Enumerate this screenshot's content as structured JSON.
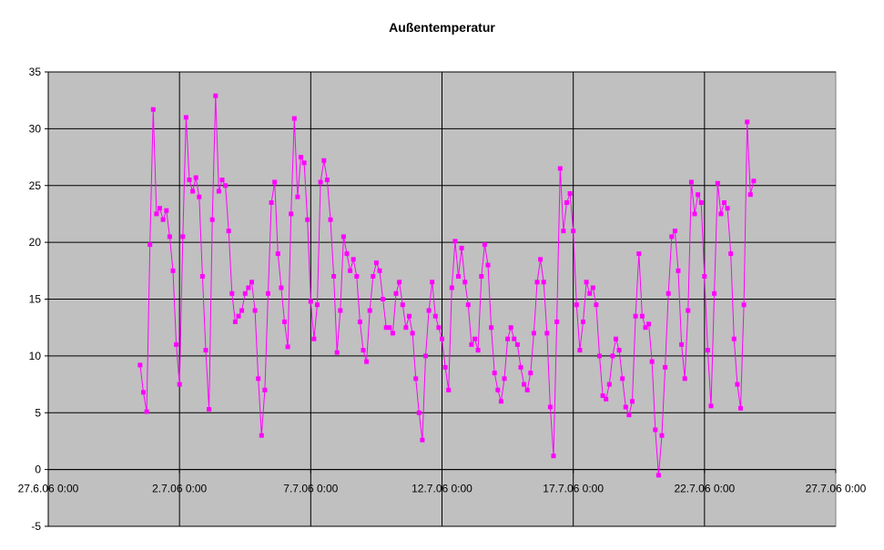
{
  "chart_data": {
    "type": "line",
    "title": "Außentemperatur",
    "xlabel": "",
    "ylabel": "",
    "ylim": [
      -5,
      35
    ],
    "yticks": [
      -5,
      0,
      5,
      10,
      15,
      20,
      25,
      30,
      35
    ],
    "xlim": [
      "2006-06-27 00:00",
      "2006-07-27 00:00"
    ],
    "xtick_labels": [
      "27.6.06 0:00",
      "2.7.06 0:00",
      "7.7.06 0:00",
      "12.7.06 0:00",
      "17.7.06 0:00",
      "22.7.06 0:00",
      "27.7.06 0:00"
    ],
    "grid": true,
    "plot_background": "#c0c0c0",
    "series": [
      {
        "color": "#ff00ff",
        "marker": "square",
        "points": [
          [
            "2006-06-30 12:00",
            9.2
          ],
          [
            "2006-06-30 15:00",
            6.8
          ],
          [
            "2006-06-30 18:00",
            5.1
          ],
          [
            "2006-06-30 21:00",
            19.8
          ],
          [
            "2006-07-01 00:00",
            31.7
          ],
          [
            "2006-07-01 03:00",
            22.5
          ],
          [
            "2006-07-01 06:00",
            23.0
          ],
          [
            "2006-07-01 09:00",
            22.0
          ],
          [
            "2006-07-01 12:00",
            22.8
          ],
          [
            "2006-07-01 15:00",
            20.5
          ],
          [
            "2006-07-01 18:00",
            17.5
          ],
          [
            "2006-07-01 21:00",
            11.0
          ],
          [
            "2006-07-02 00:00",
            7.5
          ],
          [
            "2006-07-02 03:00",
            20.5
          ],
          [
            "2006-07-02 06:00",
            31.0
          ],
          [
            "2006-07-02 09:00",
            25.5
          ],
          [
            "2006-07-02 12:00",
            24.5
          ],
          [
            "2006-07-02 15:00",
            25.7
          ],
          [
            "2006-07-02 18:00",
            24.0
          ],
          [
            "2006-07-02 21:00",
            17.0
          ],
          [
            "2006-07-03 00:00",
            10.5
          ],
          [
            "2006-07-03 03:00",
            5.3
          ],
          [
            "2006-07-03 06:00",
            22.0
          ],
          [
            "2006-07-03 09:00",
            32.9
          ],
          [
            "2006-07-03 12:00",
            24.5
          ],
          [
            "2006-07-03 15:00",
            25.5
          ],
          [
            "2006-07-03 18:00",
            25.0
          ],
          [
            "2006-07-03 21:00",
            21.0
          ],
          [
            "2006-07-04 00:00",
            15.5
          ],
          [
            "2006-07-04 03:00",
            13.0
          ],
          [
            "2006-07-04 06:00",
            13.5
          ],
          [
            "2006-07-04 09:00",
            14.0
          ],
          [
            "2006-07-04 12:00",
            15.5
          ],
          [
            "2006-07-04 15:00",
            16.0
          ],
          [
            "2006-07-04 18:00",
            16.5
          ],
          [
            "2006-07-04 21:00",
            14.0
          ],
          [
            "2006-07-05 00:00",
            8.0
          ],
          [
            "2006-07-05 03:00",
            3.0
          ],
          [
            "2006-07-05 06:00",
            7.0
          ],
          [
            "2006-07-05 09:00",
            15.5
          ],
          [
            "2006-07-05 12:00",
            23.5
          ],
          [
            "2006-07-05 15:00",
            25.3
          ],
          [
            "2006-07-05 18:00",
            19.0
          ],
          [
            "2006-07-05 21:00",
            16.0
          ],
          [
            "2006-07-06 00:00",
            13.0
          ],
          [
            "2006-07-06 03:00",
            10.8
          ],
          [
            "2006-07-06 06:00",
            22.5
          ],
          [
            "2006-07-06 09:00",
            30.9
          ],
          [
            "2006-07-06 12:00",
            24.0
          ],
          [
            "2006-07-06 15:00",
            27.5
          ],
          [
            "2006-07-06 18:00",
            27.0
          ],
          [
            "2006-07-06 21:00",
            22.0
          ],
          [
            "2006-07-07 00:00",
            14.8
          ],
          [
            "2006-07-07 03:00",
            11.5
          ],
          [
            "2006-07-07 06:00",
            14.5
          ],
          [
            "2006-07-07 09:00",
            25.3
          ],
          [
            "2006-07-07 12:00",
            27.2
          ],
          [
            "2006-07-07 15:00",
            25.5
          ],
          [
            "2006-07-07 18:00",
            22.0
          ],
          [
            "2006-07-07 21:00",
            17.0
          ],
          [
            "2006-07-08 00:00",
            10.3
          ],
          [
            "2006-07-08 03:00",
            14.0
          ],
          [
            "2006-07-08 06:00",
            20.5
          ],
          [
            "2006-07-08 09:00",
            19.0
          ],
          [
            "2006-07-08 12:00",
            17.5
          ],
          [
            "2006-07-08 15:00",
            18.5
          ],
          [
            "2006-07-08 18:00",
            17.0
          ],
          [
            "2006-07-08 21:00",
            13.0
          ],
          [
            "2006-07-09 00:00",
            10.5
          ],
          [
            "2006-07-09 03:00",
            9.5
          ],
          [
            "2006-07-09 06:00",
            14.0
          ],
          [
            "2006-07-09 09:00",
            17.0
          ],
          [
            "2006-07-09 12:00",
            18.2
          ],
          [
            "2006-07-09 15:00",
            17.5
          ],
          [
            "2006-07-09 18:00",
            15.0
          ],
          [
            "2006-07-09 21:00",
            12.5
          ],
          [
            "2006-07-10 00:00",
            12.5
          ],
          [
            "2006-07-10 03:00",
            12.0
          ],
          [
            "2006-07-10 06:00",
            15.5
          ],
          [
            "2006-07-10 09:00",
            16.5
          ],
          [
            "2006-07-10 12:00",
            14.5
          ],
          [
            "2006-07-10 15:00",
            12.5
          ],
          [
            "2006-07-10 18:00",
            13.5
          ],
          [
            "2006-07-10 21:00",
            12.0
          ],
          [
            "2006-07-11 00:00",
            8.0
          ],
          [
            "2006-07-11 03:00",
            5.0
          ],
          [
            "2006-07-11 06:00",
            2.6
          ],
          [
            "2006-07-11 09:00",
            10.0
          ],
          [
            "2006-07-11 12:00",
            14.0
          ],
          [
            "2006-07-11 15:00",
            16.5
          ],
          [
            "2006-07-11 18:00",
            13.5
          ],
          [
            "2006-07-11 21:00",
            12.5
          ],
          [
            "2006-07-12 00:00",
            11.5
          ],
          [
            "2006-07-12 03:00",
            9.0
          ],
          [
            "2006-07-12 06:00",
            7.0
          ],
          [
            "2006-07-12 09:00",
            16.0
          ],
          [
            "2006-07-12 12:00",
            20.1
          ],
          [
            "2006-07-12 15:00",
            17.0
          ],
          [
            "2006-07-12 18:00",
            19.5
          ],
          [
            "2006-07-12 21:00",
            16.5
          ],
          [
            "2006-07-13 00:00",
            14.5
          ],
          [
            "2006-07-13 03:00",
            11.0
          ],
          [
            "2006-07-13 06:00",
            11.5
          ],
          [
            "2006-07-13 09:00",
            10.5
          ],
          [
            "2006-07-13 12:00",
            17.0
          ],
          [
            "2006-07-13 15:00",
            19.8
          ],
          [
            "2006-07-13 18:00",
            18.0
          ],
          [
            "2006-07-13 21:00",
            12.5
          ],
          [
            "2006-07-14 00:00",
            8.5
          ],
          [
            "2006-07-14 03:00",
            7.0
          ],
          [
            "2006-07-14 06:00",
            6.0
          ],
          [
            "2006-07-14 09:00",
            8.0
          ],
          [
            "2006-07-14 12:00",
            11.5
          ],
          [
            "2006-07-14 15:00",
            12.5
          ],
          [
            "2006-07-14 18:00",
            11.5
          ],
          [
            "2006-07-14 21:00",
            11.0
          ],
          [
            "2006-07-15 00:00",
            9.0
          ],
          [
            "2006-07-15 03:00",
            7.5
          ],
          [
            "2006-07-15 06:00",
            7.0
          ],
          [
            "2006-07-15 09:00",
            8.5
          ],
          [
            "2006-07-15 12:00",
            12.0
          ],
          [
            "2006-07-15 15:00",
            16.5
          ],
          [
            "2006-07-15 18:00",
            18.5
          ],
          [
            "2006-07-15 21:00",
            16.5
          ],
          [
            "2006-07-16 00:00",
            12.0
          ],
          [
            "2006-07-16 03:00",
            5.5
          ],
          [
            "2006-07-16 06:00",
            1.2
          ],
          [
            "2006-07-16 09:00",
            13.0
          ],
          [
            "2006-07-16 12:00",
            26.5
          ],
          [
            "2006-07-16 15:00",
            21.0
          ],
          [
            "2006-07-16 18:00",
            23.5
          ],
          [
            "2006-07-16 21:00",
            24.3
          ],
          [
            "2006-07-17 00:00",
            21.0
          ],
          [
            "2006-07-17 03:00",
            14.5
          ],
          [
            "2006-07-17 06:00",
            10.5
          ],
          [
            "2006-07-17 09:00",
            13.0
          ],
          [
            "2006-07-17 12:00",
            16.5
          ],
          [
            "2006-07-17 15:00",
            15.5
          ],
          [
            "2006-07-17 18:00",
            16.0
          ],
          [
            "2006-07-17 21:00",
            14.5
          ],
          [
            "2006-07-18 00:00",
            10.0
          ],
          [
            "2006-07-18 03:00",
            6.5
          ],
          [
            "2006-07-18 06:00",
            6.2
          ],
          [
            "2006-07-18 09:00",
            7.5
          ],
          [
            "2006-07-18 12:00",
            10.0
          ],
          [
            "2006-07-18 15:00",
            11.5
          ],
          [
            "2006-07-18 18:00",
            10.5
          ],
          [
            "2006-07-18 21:00",
            8.0
          ],
          [
            "2006-07-19 00:00",
            5.5
          ],
          [
            "2006-07-19 03:00",
            4.8
          ],
          [
            "2006-07-19 06:00",
            6.0
          ],
          [
            "2006-07-19 09:00",
            13.5
          ],
          [
            "2006-07-19 12:00",
            19.0
          ],
          [
            "2006-07-19 15:00",
            13.5
          ],
          [
            "2006-07-19 18:00",
            12.5
          ],
          [
            "2006-07-19 21:00",
            12.8
          ],
          [
            "2006-07-20 00:00",
            9.5
          ],
          [
            "2006-07-20 03:00",
            3.5
          ],
          [
            "2006-07-20 06:00",
            -0.5
          ],
          [
            "2006-07-20 09:00",
            3.0
          ],
          [
            "2006-07-20 12:00",
            9.0
          ],
          [
            "2006-07-20 15:00",
            15.5
          ],
          [
            "2006-07-20 18:00",
            20.5
          ],
          [
            "2006-07-20 21:00",
            21.0
          ],
          [
            "2006-07-21 00:00",
            17.5
          ],
          [
            "2006-07-21 03:00",
            11.0
          ],
          [
            "2006-07-21 06:00",
            8.0
          ],
          [
            "2006-07-21 09:00",
            14.0
          ],
          [
            "2006-07-21 12:00",
            25.3
          ],
          [
            "2006-07-21 15:00",
            22.5
          ],
          [
            "2006-07-21 18:00",
            24.2
          ],
          [
            "2006-07-21 21:00",
            23.5
          ],
          [
            "2006-07-22 00:00",
            17.0
          ],
          [
            "2006-07-22 03:00",
            10.5
          ],
          [
            "2006-07-22 06:00",
            5.6
          ],
          [
            "2006-07-22 09:00",
            15.5
          ],
          [
            "2006-07-22 12:00",
            25.2
          ],
          [
            "2006-07-22 15:00",
            22.5
          ],
          [
            "2006-07-22 18:00",
            23.5
          ],
          [
            "2006-07-22 21:00",
            23.0
          ],
          [
            "2006-07-23 00:00",
            19.0
          ],
          [
            "2006-07-23 03:00",
            11.5
          ],
          [
            "2006-07-23 06:00",
            7.5
          ],
          [
            "2006-07-23 09:00",
            5.4
          ],
          [
            "2006-07-23 12:00",
            14.5
          ],
          [
            "2006-07-23 15:00",
            30.6
          ],
          [
            "2006-07-23 18:00",
            24.2
          ],
          [
            "2006-07-23 21:00",
            25.4
          ]
        ]
      }
    ]
  }
}
